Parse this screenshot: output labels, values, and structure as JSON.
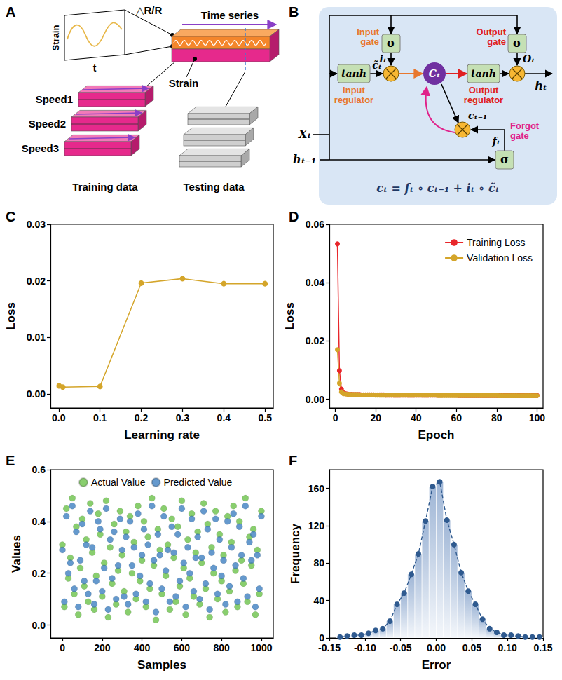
{
  "diagrams": [
    {
      "panel": "A",
      "plot": {
        "ylabel": "Strain",
        "xlabel": "t"
      },
      "signal": "△R/R",
      "time_series": "Time series",
      "layer": "Strain",
      "speeds": [
        "Speed1",
        "Speed2",
        "Speed3"
      ],
      "training": "Training data",
      "testing": "Testing data"
    },
    {
      "panel": "B",
      "inputs": [
        "Xₜ",
        "hₜ₋₁"
      ],
      "input_gate": {
        "label": "Input gate",
        "symbol": "σ",
        "output": "iₜ"
      },
      "input_regulator": {
        "label": "Input regulator",
        "symbol": "tanh",
        "output": "c̃ₜ"
      },
      "cell": "Cₜ",
      "previous_cell": "cₜ₋₁",
      "forget_gate": {
        "label": "Forgot gate",
        "symbol": "σ",
        "output": "fₜ"
      },
      "output_regulator": {
        "label": "Output regulator",
        "symbol": "tanh"
      },
      "output_gate": {
        "label": "Output gate",
        "symbol": "σ",
        "output": "Oₜ"
      },
      "output": "hₜ",
      "formula": "cₜ = fₜ ∘ cₜ₋₁ + iₜ ∘ c̃ₜ"
    }
  ],
  "chart_data": [
    {
      "panel": "C",
      "type": "line",
      "xlabel": "Learning rate",
      "ylabel": "Loss",
      "x": [
        0.001,
        0.01,
        0.1,
        0.2,
        0.3,
        0.4,
        0.5
      ],
      "values": [
        0.0014,
        0.0012,
        0.0013,
        0.0196,
        0.0204,
        0.0195,
        0.0195
      ],
      "color": "#d4a52a",
      "marker": "circle",
      "line_style": "solid",
      "xlim": [
        -0.02,
        0.52
      ],
      "xticks": [
        {
          "value": 0,
          "label": "0.0"
        },
        {
          "value": 0.1,
          "label": "0.1"
        },
        {
          "value": 0.2,
          "label": "0.2"
        },
        {
          "value": 0.3,
          "label": "0.3"
        },
        {
          "value": 0.4,
          "label": "0.4"
        },
        {
          "value": 0.5,
          "label": "0.5"
        }
      ],
      "ylim": [
        -0.0025,
        0.03
      ],
      "yticks": [
        {
          "value": 0,
          "label": "0.00"
        },
        {
          "value": 0.01,
          "label": "0.01"
        },
        {
          "value": 0.02,
          "label": "0.02"
        },
        {
          "value": 0.03,
          "label": "0.03"
        }
      ],
      "grid": false
    },
    {
      "panel": "D",
      "type": "line",
      "xlabel": "Epoch",
      "ylabel": "Loss",
      "x": [
        1,
        2,
        3,
        4,
        5,
        6,
        7,
        8,
        9,
        10,
        11,
        12,
        13,
        14,
        15,
        16,
        17,
        18,
        19,
        20,
        21,
        22,
        23,
        24,
        25,
        26,
        27,
        28,
        29,
        30,
        31,
        32,
        33,
        34,
        35,
        36,
        37,
        38,
        39,
        40,
        41,
        42,
        43,
        44,
        45,
        46,
        47,
        48,
        49,
        50,
        51,
        52,
        53,
        54,
        55,
        56,
        57,
        58,
        59,
        60,
        61,
        62,
        63,
        64,
        65,
        66,
        67,
        68,
        69,
        70,
        71,
        72,
        73,
        74,
        75,
        76,
        77,
        78,
        79,
        80,
        81,
        82,
        83,
        84,
        85,
        86,
        87,
        88,
        89,
        90,
        91,
        92,
        93,
        94,
        95,
        96,
        97,
        98,
        99,
        100
      ],
      "series": [
        {
          "name": "Training Loss",
          "color": "#e8262a",
          "marker": "circle",
          "line_style": "solid",
          "values": [
            0.0533,
            0.0098,
            0.0035,
            0.0022,
            0.0019,
            0.0018,
            0.0017,
            0.0017,
            0.0016,
            0.0016,
            0.0016,
            0.0016,
            0.0015,
            0.0015,
            0.0015,
            0.0015,
            0.0015,
            0.0015,
            0.0015,
            0.0015,
            0.0015,
            0.0015,
            0.0015,
            0.0015,
            0.0014,
            0.0014,
            0.0014,
            0.0014,
            0.0014,
            0.0014,
            0.0014,
            0.0014,
            0.0014,
            0.0014,
            0.0014,
            0.0014,
            0.0014,
            0.0014,
            0.0014,
            0.0014,
            0.0014,
            0.0014,
            0.0014,
            0.0014,
            0.0014,
            0.0014,
            0.0014,
            0.0014,
            0.0014,
            0.0014,
            0.0014,
            0.0014,
            0.0014,
            0.0014,
            0.0014,
            0.0014,
            0.0014,
            0.0014,
            0.0014,
            0.0014,
            0.0013,
            0.0013,
            0.0013,
            0.0013,
            0.0013,
            0.0013,
            0.0013,
            0.0013,
            0.0013,
            0.0013,
            0.0013,
            0.0013,
            0.0013,
            0.0013,
            0.0013,
            0.0013,
            0.0013,
            0.0013,
            0.0013,
            0.0013,
            0.0013,
            0.0013,
            0.0013,
            0.0013,
            0.0013,
            0.0013,
            0.0013,
            0.0013,
            0.0013,
            0.0013,
            0.0013,
            0.0013,
            0.0013,
            0.0013,
            0.0013,
            0.0013,
            0.0013,
            0.0013,
            0.0013,
            0.0013
          ]
        },
        {
          "name": "Validation Loss",
          "color": "#d4a52a",
          "marker": "circle",
          "line_style": "solid",
          "values": [
            0.017,
            0.0055,
            0.0025,
            0.0019,
            0.0018,
            0.0017,
            0.0017,
            0.0016,
            0.0016,
            0.0016,
            0.0016,
            0.0015,
            0.0015,
            0.0015,
            0.0015,
            0.0015,
            0.0015,
            0.0015,
            0.0015,
            0.0014,
            0.0014,
            0.0014,
            0.0014,
            0.0014,
            0.0014,
            0.0014,
            0.0014,
            0.0014,
            0.0014,
            0.0014,
            0.0014,
            0.0014,
            0.0014,
            0.0014,
            0.0014,
            0.0014,
            0.0014,
            0.0014,
            0.0014,
            0.0014,
            0.0014,
            0.0014,
            0.0014,
            0.0014,
            0.0014,
            0.0014,
            0.0014,
            0.0014,
            0.0014,
            0.0014,
            0.0013,
            0.0013,
            0.0013,
            0.0013,
            0.0013,
            0.0013,
            0.0013,
            0.0013,
            0.0013,
            0.0013,
            0.0013,
            0.0013,
            0.0013,
            0.0013,
            0.0013,
            0.0013,
            0.0013,
            0.0013,
            0.0013,
            0.0013,
            0.0013,
            0.0013,
            0.0013,
            0.0013,
            0.0013,
            0.0013,
            0.0013,
            0.0013,
            0.0013,
            0.0013,
            0.0012,
            0.0012,
            0.0012,
            0.0012,
            0.0012,
            0.0012,
            0.0012,
            0.0012,
            0.0012,
            0.0012,
            0.0012,
            0.0012,
            0.0012,
            0.0012,
            0.0012,
            0.0012,
            0.0012,
            0.0012,
            0.0012,
            0.0012
          ]
        }
      ],
      "legend": "upper right",
      "xlim": [
        -3,
        103
      ],
      "xticks": [
        0,
        20,
        40,
        60,
        80,
        100
      ],
      "ylim": [
        -0.003,
        0.06
      ],
      "yticks": [
        {
          "value": 0,
          "label": "0.00"
        },
        {
          "value": 0.02,
          "label": "0.02"
        },
        {
          "value": 0.04,
          "label": "0.04"
        },
        {
          "value": 0.06,
          "label": "0.06"
        }
      ],
      "grid": false
    },
    {
      "panel": "E",
      "type": "scatter",
      "xlabel": "Samples",
      "ylabel": "Values",
      "x": [
        0,
        10,
        20,
        30,
        40,
        50,
        60,
        70,
        80,
        90,
        100,
        110,
        120,
        130,
        140,
        150,
        160,
        170,
        180,
        190,
        200,
        210,
        220,
        230,
        240,
        250,
        260,
        270,
        280,
        290,
        300,
        310,
        320,
        330,
        340,
        350,
        360,
        370,
        380,
        390,
        400,
        410,
        420,
        430,
        440,
        450,
        460,
        470,
        480,
        490,
        500,
        510,
        520,
        530,
        540,
        550,
        560,
        570,
        580,
        590,
        600,
        610,
        620,
        630,
        640,
        650,
        660,
        670,
        680,
        690,
        700,
        710,
        720,
        730,
        740,
        750,
        760,
        770,
        780,
        790,
        800,
        810,
        820,
        830,
        840,
        850,
        860,
        870,
        880,
        890,
        900,
        910,
        920,
        930,
        940,
        950,
        960,
        970,
        980,
        990,
        1000
      ],
      "series": [
        {
          "name": "Actual Value",
          "color": "#6cc24a",
          "marker": "circle",
          "values": [
            0.31,
            0.07,
            0.45,
            0.18,
            0.26,
            0.49,
            0.12,
            0.38,
            0.04,
            0.22,
            0.41,
            0.15,
            0.33,
            0.09,
            0.47,
            0.28,
            0.06,
            0.19,
            0.43,
            0.35,
            0.11,
            0.24,
            0.48,
            0.03,
            0.3,
            0.16,
            0.39,
            0.08,
            0.21,
            0.44,
            0.27,
            0.13,
            0.36,
            0.05,
            0.42,
            0.2,
            0.32,
            0.1,
            0.46,
            0.17,
            0.25,
            0.4,
            0.07,
            0.34,
            0.14,
            0.49,
            0.23,
            0.02,
            0.37,
            0.29,
            0.12,
            0.45,
            0.19,
            0.31,
            0.06,
            0.41,
            0.26,
            0.09,
            0.38,
            0.15,
            0.48,
            0.22,
            0.04,
            0.33,
            0.18,
            0.43,
            0.11,
            0.28,
            0.36,
            0.08,
            0.24,
            0.47,
            0.14,
            0.39,
            0.03,
            0.3,
            0.2,
            0.44,
            0.1,
            0.35,
            0.17,
            0.27,
            0.05,
            0.42,
            0.13,
            0.32,
            0.46,
            0.21,
            0.07,
            0.4,
            0.25,
            0.16,
            0.49,
            0.09,
            0.34,
            0.23,
            0.37,
            0.04,
            0.29,
            0.12,
            0.44
          ]
        },
        {
          "name": "Predicted Value",
          "color": "#3f7fc0",
          "marker": "circle",
          "values": [
            0.29,
            0.09,
            0.42,
            0.2,
            0.24,
            0.46,
            0.14,
            0.36,
            0.07,
            0.25,
            0.39,
            0.17,
            0.31,
            0.12,
            0.44,
            0.3,
            0.08,
            0.17,
            0.4,
            0.37,
            0.13,
            0.22,
            0.45,
            0.06,
            0.33,
            0.18,
            0.36,
            0.1,
            0.23,
            0.41,
            0.29,
            0.11,
            0.34,
            0.08,
            0.4,
            0.23,
            0.3,
            0.12,
            0.43,
            0.19,
            0.27,
            0.37,
            0.09,
            0.31,
            0.16,
            0.46,
            0.25,
            0.05,
            0.35,
            0.27,
            0.14,
            0.42,
            0.21,
            0.29,
            0.09,
            0.38,
            0.28,
            0.11,
            0.35,
            0.17,
            0.45,
            0.24,
            0.07,
            0.3,
            0.2,
            0.41,
            0.13,
            0.26,
            0.34,
            0.1,
            0.26,
            0.44,
            0.16,
            0.37,
            0.06,
            0.28,
            0.22,
            0.41,
            0.12,
            0.33,
            0.19,
            0.25,
            0.08,
            0.4,
            0.15,
            0.3,
            0.43,
            0.23,
            0.09,
            0.38,
            0.27,
            0.18,
            0.46,
            0.11,
            0.32,
            0.25,
            0.35,
            0.07,
            0.27,
            0.14,
            0.42
          ]
        }
      ],
      "legend": "top",
      "xlim": [
        -60,
        1060
      ],
      "xticks": [
        0,
        200,
        400,
        600,
        800,
        1000
      ],
      "ylim": [
        -0.05,
        0.6
      ],
      "yticks": [
        {
          "value": 0,
          "label": "0.0"
        },
        {
          "value": 0.2,
          "label": "0.2"
        },
        {
          "value": 0.4,
          "label": "0.4"
        },
        {
          "value": 0.6,
          "label": "0.6"
        }
      ],
      "grid": false
    },
    {
      "panel": "F",
      "type": "histogram",
      "xlabel": "Error",
      "ylabel": "Frequency",
      "bins": [
        -0.14,
        -0.13,
        -0.12,
        -0.11,
        -0.1,
        -0.09,
        -0.08,
        -0.07,
        -0.06,
        -0.05,
        -0.04,
        -0.03,
        -0.02,
        -0.01,
        0,
        0.01,
        0.02,
        0.03,
        0.04,
        0.05,
        0.06,
        0.07,
        0.08,
        0.09,
        0.1,
        0.11,
        0.12,
        0.13,
        0.14,
        0.15
      ],
      "counts": [
        1,
        2,
        3,
        3,
        5,
        8,
        10,
        18,
        36,
        48,
        68,
        90,
        125,
        162,
        167,
        126,
        100,
        70,
        50,
        36,
        20,
        10,
        6,
        3,
        3,
        2,
        1,
        1,
        1
      ],
      "color": "#9fb6d6",
      "curve": {
        "color": "#2f5a8f",
        "marker": "circle",
        "line_style": "dashed"
      },
      "xlim": [
        -0.15,
        0.15
      ],
      "xticks": [
        {
          "value": -0.15,
          "label": "-0.15"
        },
        {
          "value": -0.1,
          "label": "-0.10"
        },
        {
          "value": -0.05,
          "label": "-0.05"
        },
        {
          "value": 0,
          "label": "0.00"
        },
        {
          "value": 0.05,
          "label": "0.05"
        },
        {
          "value": 0.1,
          "label": "0.10"
        },
        {
          "value": 0.15,
          "label": "0.15"
        }
      ],
      "ylim": [
        0,
        180
      ],
      "yticks": [
        0,
        40,
        80,
        120,
        160
      ],
      "grid": false
    }
  ]
}
